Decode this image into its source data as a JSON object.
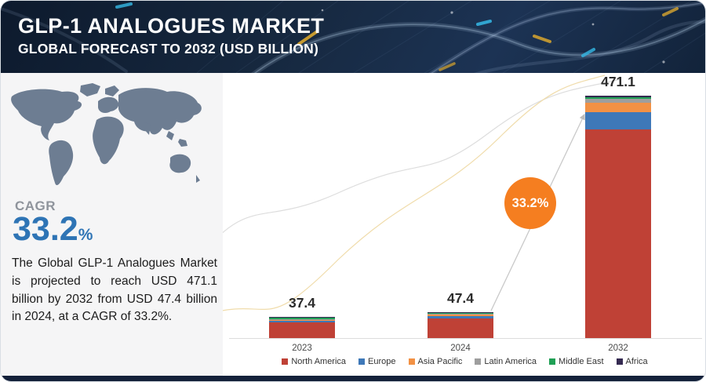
{
  "header": {
    "title": "GLP-1 ANALOGUES MARKET",
    "subtitle": "GLOBAL FORECAST TO 2032 (USD BILLION)"
  },
  "sidebar": {
    "cagr_label": "CAGR",
    "cagr_value": "33.2",
    "cagr_unit": "%",
    "description": "The Global GLP-1 Analogues Market is projected to reach USD 471.1 billion by 2032 from USD 47.4 billion in 2024, at a CAGR of 33.2%."
  },
  "chart_data": {
    "type": "bar",
    "stacked": true,
    "title": "GLP-1 Analogues Market, Global Forecast to 2032 (USD Billion)",
    "categories": [
      "2023",
      "2024",
      "2032"
    ],
    "totals": [
      37.4,
      47.4,
      471.1
    ],
    "total_labels": [
      "37.4",
      "47.4",
      "471.1"
    ],
    "series": [
      {
        "name": "North America",
        "color": "#bf4136",
        "values": [
          30.5,
          38.6,
          406.1
        ]
      },
      {
        "name": "Europe",
        "color": "#3e78b8",
        "values": [
          3.2,
          4.2,
          33.0
        ]
      },
      {
        "name": "Asia Pacific",
        "color": "#f29144",
        "values": [
          1.8,
          2.4,
          19.0
        ]
      },
      {
        "name": "Latin America",
        "color": "#9e9e9e",
        "values": [
          1.0,
          1.2,
          7.0
        ]
      },
      {
        "name": "Middle East",
        "color": "#1fa055",
        "values": [
          0.5,
          0.6,
          3.5
        ]
      },
      {
        "name": "Africa",
        "color": "#352a51",
        "values": [
          0.4,
          0.4,
          2.5
        ]
      }
    ],
    "ylim": [
      0,
      500
    ],
    "grid": false,
    "legend_position": "bottom",
    "growth_bubble": "33.2%",
    "accent_colors": {
      "bubble": "#f57e20",
      "cagr_blue": "#2e74b5",
      "header_navy": "#16283f"
    }
  }
}
